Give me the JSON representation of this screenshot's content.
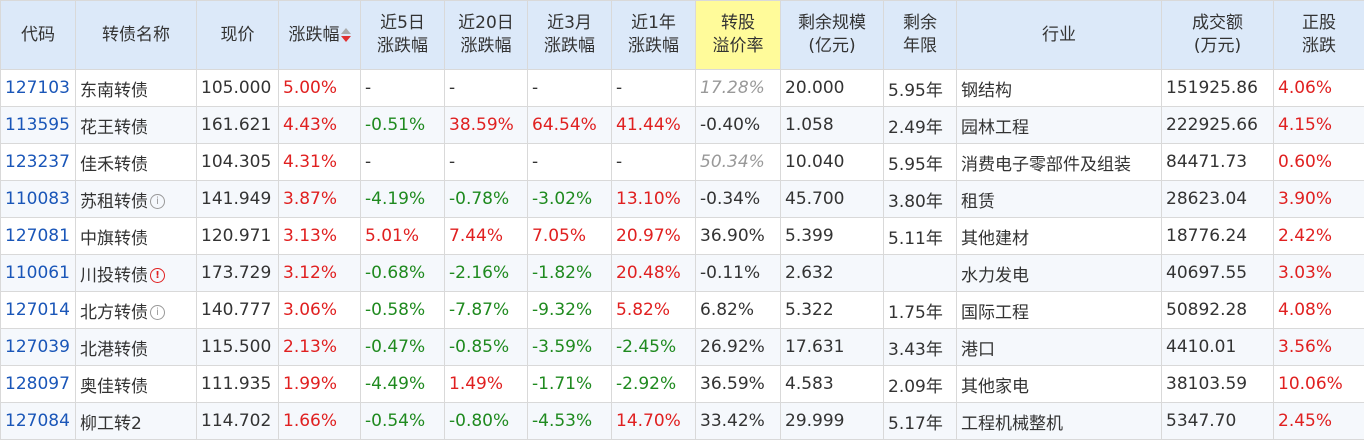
{
  "headers": {
    "code": "代码",
    "name": "转债名称",
    "price": "现价",
    "change": "涨跌幅",
    "w5_l1": "近5日",
    "w5_l2": "涨跌幅",
    "d20_l1": "近20日",
    "d20_l2": "涨跌幅",
    "m3_l1": "近3月",
    "m3_l2": "涨跌幅",
    "y1_l1": "近1年",
    "y1_l2": "涨跌幅",
    "prem_l1": "转股",
    "prem_l2": "溢价率",
    "scale_l1": "剩余规模",
    "scale_l2": "(亿元)",
    "years_l1": "剩余",
    "years_l2": "年限",
    "industry": "行业",
    "volume_l1": "成交额",
    "volume_l2": "(万元)",
    "stock_l1": "正股",
    "stock_l2": "涨跌"
  },
  "rows": [
    {
      "code": "127103",
      "name": "东南转债",
      "icon": "",
      "price": "105.000",
      "change": "5.00%",
      "w5": "-",
      "d20": "-",
      "m3": "-",
      "y1": "-",
      "premium": "17.28%",
      "premium_italic": true,
      "scale": "20.000",
      "years": "5.95年",
      "industry": "钢结构",
      "volume": "151925.86",
      "stock": "4.06%"
    },
    {
      "code": "113595",
      "name": "花王转债",
      "icon": "",
      "price": "161.621",
      "change": "4.43%",
      "w5": "-0.51%",
      "d20": "38.59%",
      "m3": "64.54%",
      "y1": "41.44%",
      "premium": "-0.40%",
      "premium_italic": false,
      "scale": "1.058",
      "years": "2.49年",
      "industry": "园林工程",
      "volume": "222925.66",
      "stock": "4.15%"
    },
    {
      "code": "123237",
      "name": "佳禾转债",
      "icon": "",
      "price": "104.305",
      "change": "4.31%",
      "w5": "-",
      "d20": "-",
      "m3": "-",
      "y1": "-",
      "premium": "50.34%",
      "premium_italic": true,
      "scale": "10.040",
      "years": "5.95年",
      "industry": "消费电子零部件及组装",
      "volume": "84471.73",
      "stock": "0.60%"
    },
    {
      "code": "110083",
      "name": "苏租转债",
      "icon": "info",
      "price": "141.949",
      "change": "3.87%",
      "w5": "-4.19%",
      "d20": "-0.78%",
      "m3": "-3.02%",
      "y1": "13.10%",
      "premium": "-0.34%",
      "premium_italic": false,
      "scale": "45.700",
      "years": "3.80年",
      "industry": "租赁",
      "volume": "28623.04",
      "stock": "3.90%"
    },
    {
      "code": "127081",
      "name": "中旗转债",
      "icon": "",
      "price": "120.971",
      "change": "3.13%",
      "w5": "5.01%",
      "d20": "7.44%",
      "m3": "7.05%",
      "y1": "20.97%",
      "premium": "36.90%",
      "premium_italic": false,
      "scale": "5.399",
      "years": "5.11年",
      "industry": "其他建材",
      "volume": "18776.24",
      "stock": "2.42%"
    },
    {
      "code": "110061",
      "name": "川投转债",
      "icon": "warn",
      "price": "173.729",
      "change": "3.12%",
      "w5": "-0.68%",
      "d20": "-2.16%",
      "m3": "-1.82%",
      "y1": "20.48%",
      "premium": "-0.11%",
      "premium_italic": false,
      "scale": "2.632",
      "years": "",
      "industry": "水力发电",
      "volume": "40697.55",
      "stock": "3.03%"
    },
    {
      "code": "127014",
      "name": "北方转债",
      "icon": "info",
      "price": "140.777",
      "change": "3.06%",
      "w5": "-0.58%",
      "d20": "-7.87%",
      "m3": "-9.32%",
      "y1": "5.82%",
      "premium": "6.82%",
      "premium_italic": false,
      "scale": "5.322",
      "years": "1.75年",
      "industry": "国际工程",
      "volume": "50892.28",
      "stock": "4.08%"
    },
    {
      "code": "127039",
      "name": "北港转债",
      "icon": "",
      "price": "115.500",
      "change": "2.13%",
      "w5": "-0.47%",
      "d20": "-0.85%",
      "m3": "-3.59%",
      "y1": "-2.45%",
      "premium": "26.92%",
      "premium_italic": false,
      "scale": "17.631",
      "years": "3.43年",
      "industry": "港口",
      "volume": "4410.01",
      "stock": "3.56%"
    },
    {
      "code": "128097",
      "name": "奥佳转债",
      "icon": "",
      "price": "111.935",
      "change": "1.99%",
      "w5": "-4.49%",
      "d20": "1.49%",
      "m3": "-1.71%",
      "y1": "-2.92%",
      "premium": "36.59%",
      "premium_italic": false,
      "scale": "4.583",
      "years": "2.09年",
      "industry": "其他家电",
      "volume": "38103.59",
      "stock": "10.06%"
    },
    {
      "code": "127084",
      "name": "柳工转2",
      "icon": "",
      "price": "114.702",
      "change": "1.66%",
      "w5": "-0.54%",
      "d20": "-0.80%",
      "m3": "-4.53%",
      "y1": "14.70%",
      "premium": "33.42%",
      "premium_italic": false,
      "scale": "29.999",
      "years": "5.17年",
      "industry": "工程机械整机",
      "volume": "5347.70",
      "stock": "2.45%"
    }
  ]
}
